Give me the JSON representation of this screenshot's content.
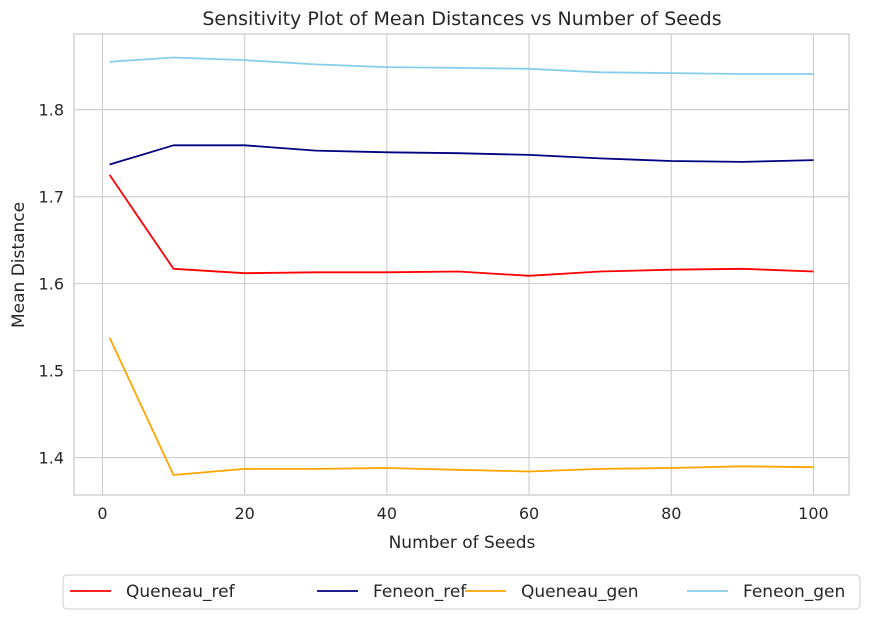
{
  "chart_data": {
    "type": "line",
    "title": "Sensitivity Plot of Mean Distances vs Number of Seeds",
    "xlabel": "Number of Seeds",
    "ylabel": "Mean Distance",
    "x": [
      1,
      10,
      20,
      30,
      40,
      50,
      60,
      70,
      80,
      90,
      100
    ],
    "xlim": [
      -4,
      105
    ],
    "ylim": [
      1.357,
      1.887
    ],
    "xticks": [
      "0",
      "20",
      "40",
      "60",
      "80",
      "100"
    ],
    "yticks": [
      "1.4",
      "1.5",
      "1.6",
      "1.7",
      "1.8"
    ],
    "grid": true,
    "legend_position": "bottom",
    "series": [
      {
        "name": "Queneau_ref",
        "color": "#ff0000",
        "values": [
          1.725,
          1.617,
          1.612,
          1.613,
          1.613,
          1.614,
          1.609,
          1.614,
          1.616,
          1.617,
          1.614
        ]
      },
      {
        "name": "Feneon_ref",
        "color": "#000080",
        "values": [
          1.737,
          1.759,
          1.759,
          1.753,
          1.751,
          1.75,
          1.748,
          1.744,
          1.741,
          1.74,
          1.742
        ]
      },
      {
        "name": "Queneau_gen",
        "color": "#ffa500",
        "values": [
          1.538,
          1.38,
          1.387,
          1.387,
          1.388,
          1.386,
          1.384,
          1.387,
          1.388,
          1.39,
          1.389
        ]
      },
      {
        "name": "Feneon_gen",
        "color": "#87ceeb",
        "values": [
          1.855,
          1.86,
          1.857,
          1.852,
          1.849,
          1.848,
          1.847,
          1.843,
          1.842,
          1.841,
          1.841
        ]
      }
    ]
  }
}
